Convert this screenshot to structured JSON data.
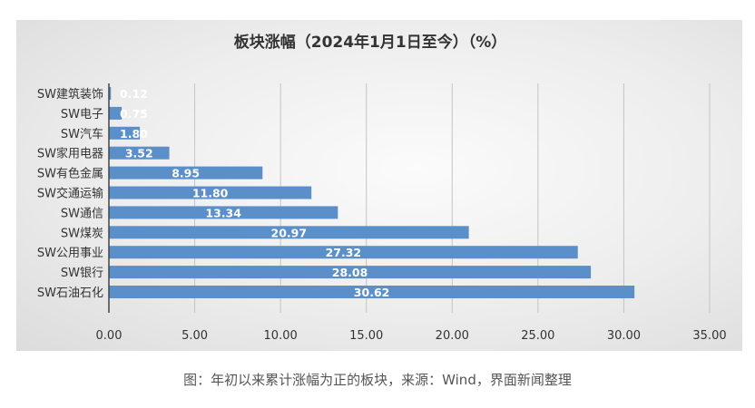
{
  "chart_data": {
    "type": "bar",
    "orientation": "horizontal",
    "title": "板块涨幅（2024年1月1日至今）（%）",
    "categories": [
      "SW建筑装饰",
      "SW电子",
      "SW汽车",
      "SW家用电器",
      "SW有色金属",
      "SW交通运输",
      "SW通信",
      "SW煤炭",
      "SW公用事业",
      "SW银行",
      "SW石油石化"
    ],
    "values": [
      0.12,
      0.75,
      1.8,
      3.52,
      8.95,
      11.8,
      13.34,
      20.97,
      27.32,
      28.08,
      30.62
    ],
    "value_labels": [
      "0.12",
      "0.75",
      "1.80",
      "3.52",
      "8.95",
      "11.80",
      "13.34",
      "20.97",
      "27.32",
      "28.08",
      "30.62"
    ],
    "xlim": [
      0,
      35
    ],
    "xticks": [
      "0.00",
      "5.00",
      "10.00",
      "15.00",
      "20.00",
      "25.00",
      "30.00",
      "35.00"
    ],
    "xtick_values": [
      0,
      5,
      10,
      15,
      20,
      25,
      30,
      35
    ],
    "grid": "vertical",
    "bar_color": "#5b8fc9",
    "label_color": "#ffffff"
  },
  "caption": "图：年初以来累计涨幅为正的板块，来源：Wind，界面新闻整理"
}
